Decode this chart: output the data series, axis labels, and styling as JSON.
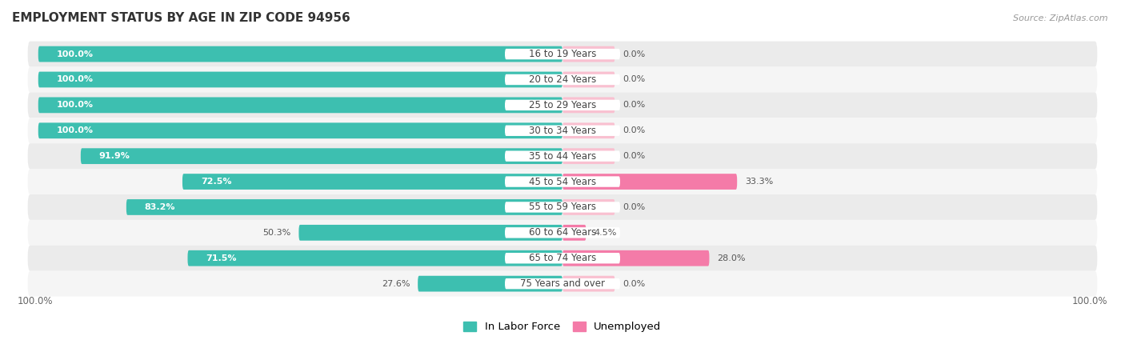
{
  "title": "EMPLOYMENT STATUS BY AGE IN ZIP CODE 94956",
  "source": "Source: ZipAtlas.com",
  "categories": [
    "16 to 19 Years",
    "20 to 24 Years",
    "25 to 29 Years",
    "30 to 34 Years",
    "35 to 44 Years",
    "45 to 54 Years",
    "55 to 59 Years",
    "60 to 64 Years",
    "65 to 74 Years",
    "75 Years and over"
  ],
  "labor_force": [
    100.0,
    100.0,
    100.0,
    100.0,
    91.9,
    72.5,
    83.2,
    50.3,
    71.5,
    27.6
  ],
  "unemployed": [
    0.0,
    0.0,
    0.0,
    0.0,
    0.0,
    33.3,
    0.0,
    4.5,
    28.0,
    0.0
  ],
  "color_labor": "#3DBFB0",
  "color_unemployed_full": "#F47BA8",
  "color_unemployed_zero": "#F9C0D0",
  "color_bg_row_odd": "#EBEBEB",
  "color_bg_row_even": "#F5F5F5",
  "bar_height": 0.62,
  "label_box_color": "#FFFFFF",
  "label_text_color": "#555555",
  "label_white_threshold": 60,
  "zero_bar_width": 10,
  "legend_labor": "In Labor Force",
  "legend_unemployed": "Unemployed",
  "axis_label_left": "100.0%",
  "axis_label_right": "100.0%"
}
